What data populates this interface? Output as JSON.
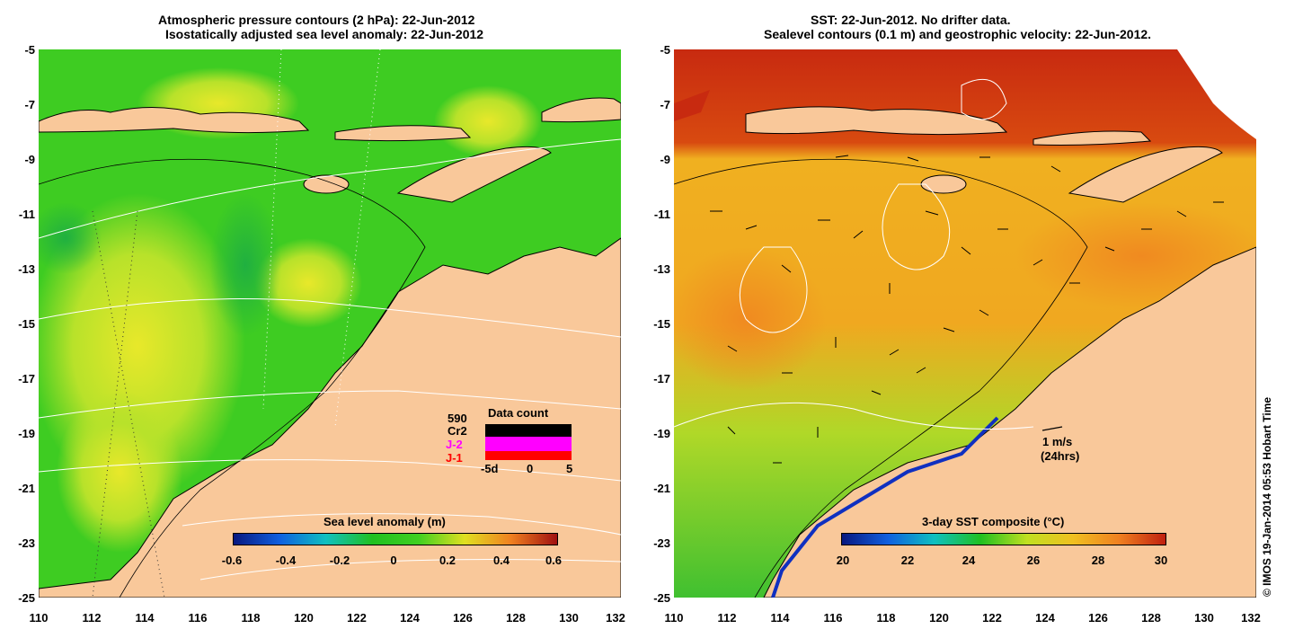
{
  "left_panel": {
    "title_line1": "Atmospheric pressure contours (2 hPa): 22-Jun-2012",
    "title_line2": "Isostatically adjusted sea level anomaly: 22-Jun-2012",
    "colorbar_title": "Sea level anomaly (m)",
    "colorbar_ticks": [
      "-0.6",
      "-0.4",
      "-0.2",
      "0",
      "0.2",
      "0.4",
      "0.6"
    ],
    "data_count": {
      "title": "Data count",
      "total": "590",
      "satellites": [
        "Cr2",
        "J-2",
        "J-1"
      ],
      "axis_labels": [
        "-5d",
        "0",
        "5"
      ],
      "colors": {
        "Cr2": "#000000",
        "J-2": "#ff00ff",
        "J-1": "#ff0000"
      }
    }
  },
  "right_panel": {
    "title_line1": "SST: 22-Jun-2012. No drifter data.",
    "title_line2": "Sealevel contours (0.1 m) and geostrophic velocity: 22-Jun-2012.",
    "colorbar_title": "3-day SST composite (°C)",
    "colorbar_ticks": [
      "20",
      "22",
      "24",
      "26",
      "28",
      "30"
    ],
    "velocity_scale_label": "1 m/s",
    "velocity_scale_sub": "(24hrs)"
  },
  "axes": {
    "lat_ticks": [
      "-5",
      "-7",
      "-9",
      "-11",
      "-13",
      "-15",
      "-17",
      "-19",
      "-21",
      "-23",
      "-25"
    ],
    "lon_ticks": [
      "110",
      "112",
      "114",
      "116",
      "118",
      "120",
      "122",
      "124",
      "126",
      "128",
      "130",
      "132"
    ]
  },
  "credit": "© IMOS 19-Jan-2014 05:53 Hobart Time",
  "colors": {
    "land": "#f9c89a",
    "sea_green": "#3ecc22",
    "sea_yellow": "#c6e82a",
    "sst_orange": "#f0a020",
    "sst_red": "#c82a10",
    "coast_blue": "#1030c0"
  }
}
